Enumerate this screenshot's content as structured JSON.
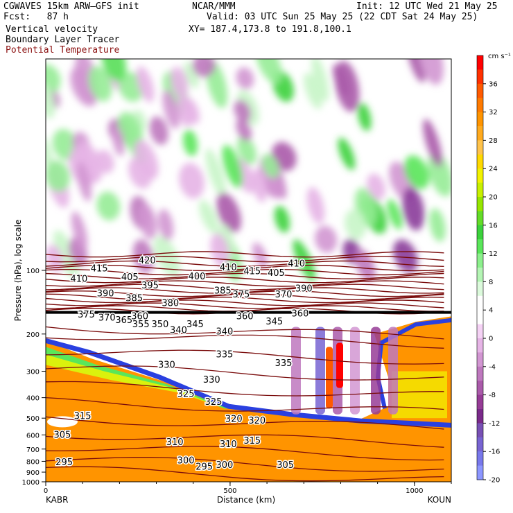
{
  "header": {
    "model": "CGWAVES 15km ARW–GFS init",
    "forecast": "Fcst:   87 h",
    "org": "NCAR/MMM",
    "init": "Init: 12 UTC Wed 21 May 25",
    "valid": "Valid: 03 UTC Sun 25 May 25 (22 CDT Sat 24 May 25)",
    "xy": "XY= 187.4,173.8 to 191.8,100.1",
    "fields": [
      "Vertical velocity",
      "Boundary Layer Tracer",
      "Potential Temperature"
    ]
  },
  "colors": {
    "theta_contour": "#7a0c0c",
    "title_field3": "#8b1010"
  },
  "chart_data": {
    "type": "heatmap",
    "xlabel": "Distance (km)",
    "ylabel": "Pressure (hPa), log scale",
    "xlim": [
      0,
      1100
    ],
    "ylim": [
      1000,
      10
    ],
    "y_log": true,
    "x_ticks": [
      0,
      500,
      1000
    ],
    "y_ticks": [
      100,
      200,
      300,
      400,
      500,
      600,
      700,
      800,
      900,
      1000
    ],
    "x_endpoints": {
      "left": "KABR",
      "right": "KOUN"
    },
    "colorbar": {
      "unit": "cm s⁻¹",
      "tick_labels": [
        "36",
        "32",
        "28",
        "24",
        "20",
        "16",
        "12",
        "8",
        "4",
        "0",
        "-4",
        "-8",
        "-12",
        "-16",
        "-20"
      ],
      "colors": [
        "#ff0000",
        "#ff3000",
        "#ff5a00",
        "#ff7a00",
        "#ff9400",
        "#ffaa1e",
        "#ffc34b",
        "#ffd900",
        "#f2f200",
        "#c8f000",
        "#96e600",
        "#64dc28",
        "#3cd23c",
        "#5ae65a",
        "#8cf08c",
        "#b4f5b4",
        "#dcfadc",
        "#ffffff",
        "#ffffff",
        "#f5d2f5",
        "#e6b4e6",
        "#d296d2",
        "#be78be",
        "#aa5aaa",
        "#963c96",
        "#7a2a8a",
        "#7850b4",
        "#7864d2",
        "#7878eb",
        "#8c96ff"
      ]
    },
    "theta_contours": [
      {
        "label": "420",
        "x": 275,
        "p": 90
      },
      {
        "label": "415",
        "x": 145,
        "p": 98
      },
      {
        "label": "410",
        "x": 90,
        "p": 110
      },
      {
        "label": "405",
        "x": 228,
        "p": 108
      },
      {
        "label": "395",
        "x": 283,
        "p": 118
      },
      {
        "label": "390",
        "x": 162,
        "p": 129
      },
      {
        "label": "385",
        "x": 240,
        "p": 136
      },
      {
        "label": "380",
        "x": 338,
        "p": 143
      },
      {
        "label": "375",
        "x": 110,
        "p": 162
      },
      {
        "label": "370",
        "x": 166,
        "p": 168
      },
      {
        "label": "365",
        "x": 212,
        "p": 172
      },
      {
        "label": "360",
        "x": 255,
        "p": 165
      },
      {
        "label": "355",
        "x": 258,
        "p": 180
      },
      {
        "label": "350",
        "x": 310,
        "p": 180
      },
      {
        "label": "345",
        "x": 405,
        "p": 180
      },
      {
        "label": "340",
        "x": 360,
        "p": 192
      },
      {
        "label": "340",
        "x": 485,
        "p": 195
      },
      {
        "label": "335",
        "x": 485,
        "p": 250
      },
      {
        "label": "335",
        "x": 645,
        "p": 275
      },
      {
        "label": "330",
        "x": 328,
        "p": 280
      },
      {
        "label": "330",
        "x": 450,
        "p": 330
      },
      {
        "label": "325",
        "x": 380,
        "p": 385
      },
      {
        "label": "325",
        "x": 455,
        "p": 420
      },
      {
        "label": "320",
        "x": 510,
        "p": 505
      },
      {
        "label": "320",
        "x": 573,
        "p": 515
      },
      {
        "label": "315",
        "x": 100,
        "p": 490
      },
      {
        "label": "315",
        "x": 560,
        "p": 640
      },
      {
        "label": "310",
        "x": 350,
        "p": 650
      },
      {
        "label": "310",
        "x": 495,
        "p": 665
      },
      {
        "label": "305",
        "x": 45,
        "p": 600
      },
      {
        "label": "305",
        "x": 650,
        "p": 835
      },
      {
        "label": "300",
        "x": 380,
        "p": 795
      },
      {
        "label": "300",
        "x": 485,
        "p": 835
      },
      {
        "label": "295",
        "x": 50,
        "p": 810
      },
      {
        "label": "295",
        "x": 430,
        "p": 850
      },
      {
        "label": "400",
        "x": 410,
        "p": 107
      },
      {
        "label": "410",
        "x": 495,
        "p": 97
      },
      {
        "label": "415",
        "x": 560,
        "p": 101
      },
      {
        "label": "405",
        "x": 625,
        "p": 103
      },
      {
        "label": "410",
        "x": 680,
        "p": 93
      },
      {
        "label": "385",
        "x": 480,
        "p": 125
      },
      {
        "label": "375",
        "x": 530,
        "p": 130
      },
      {
        "label": "370",
        "x": 645,
        "p": 130
      },
      {
        "label": "390",
        "x": 700,
        "p": 122
      },
      {
        "label": "360",
        "x": 540,
        "p": 165
      },
      {
        "label": "360",
        "x": 690,
        "p": 160
      },
      {
        "label": "345",
        "x": 620,
        "p": 175
      }
    ]
  }
}
